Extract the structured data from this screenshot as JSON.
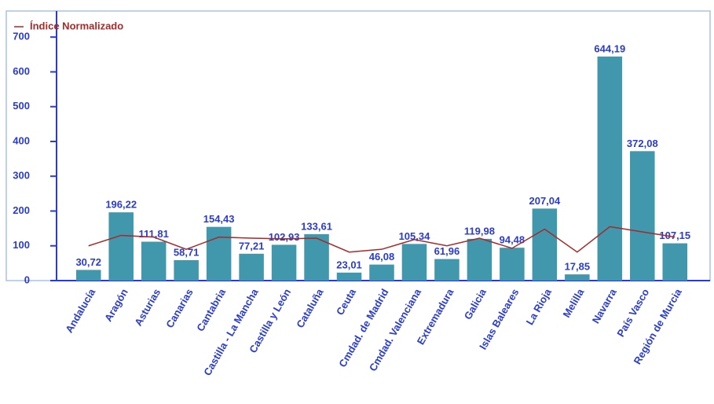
{
  "chart_data": {
    "type": "bar",
    "categories": [
      "Andalucía",
      "Aragón",
      "Asturias",
      "Canarias",
      "Cantabria",
      "Castilla - La Mancha",
      "Castilla y León",
      "Cataluña",
      "Ceuta",
      "Cmdad. de Madrid",
      "Cmdad. Valenciana",
      "Extremadura",
      "Galicia",
      "Islas Baleares",
      "La Rioja",
      "Melilla",
      "Navarra",
      "País Vasco",
      "Región de Murcia"
    ],
    "values": [
      30.72,
      196.22,
      111.81,
      58.71,
      154.43,
      77.21,
      102.93,
      133.61,
      23.01,
      46.08,
      105.34,
      61.96,
      119.98,
      94.48,
      207.04,
      17.85,
      644.19,
      372.08,
      107.15
    ],
    "value_labels": [
      "30,72",
      "196,22",
      "111,81",
      "58,71",
      "154,43",
      "77,21",
      "102,93",
      "133,61",
      "23,01",
      "46,08",
      "105,34",
      "61,96",
      "119,98",
      "94,48",
      "207,04",
      "17,85",
      "644,19",
      "372,08",
      "107,15"
    ],
    "color": "#4197ab",
    "series": [
      {
        "name": "Índice Normalizado",
        "type": "line",
        "color": "#a52a2a",
        "values": [
          100,
          130,
          125,
          90,
          125,
          122,
          120,
          122,
          82,
          90,
          118,
          100,
          122,
          93,
          148,
          82,
          155,
          140,
          125
        ]
      }
    ],
    "ylim": [
      0,
      775
    ],
    "yticks": [
      0,
      100,
      200,
      300,
      400,
      500,
      600,
      700
    ],
    "legend": "top-left"
  }
}
